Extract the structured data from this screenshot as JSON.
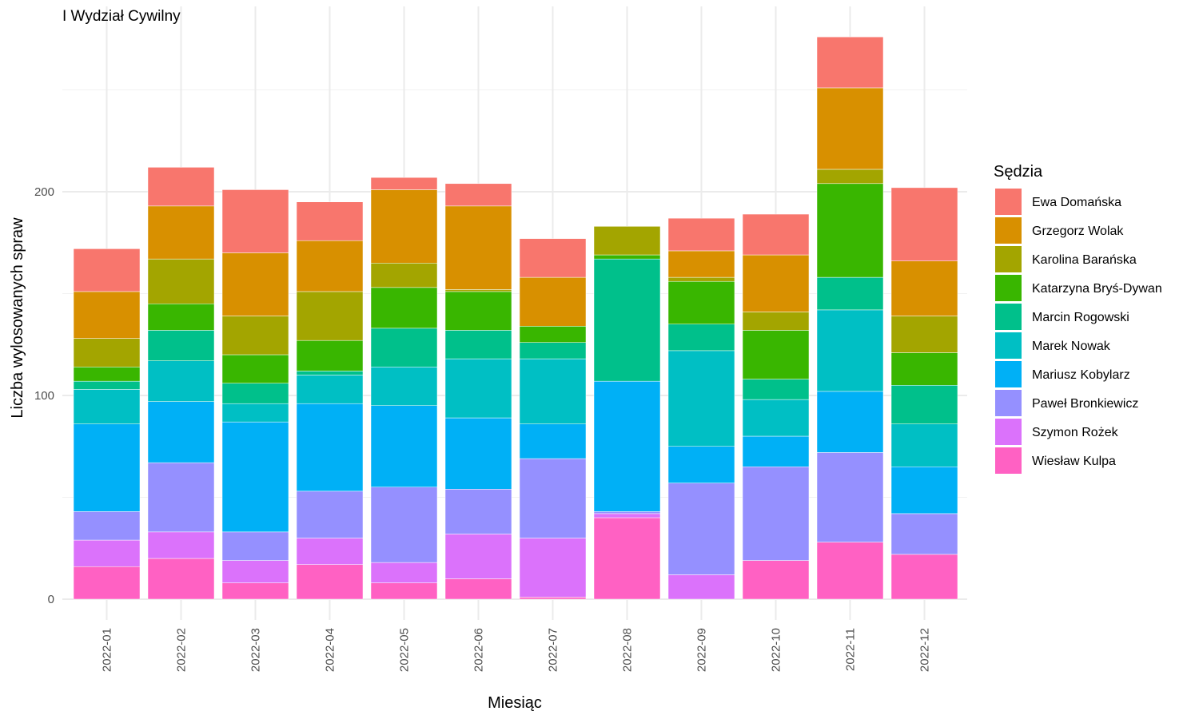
{
  "chart_data": {
    "type": "bar",
    "stacked": true,
    "title": "I Wydział Cywilny",
    "xlabel": "Miesiąc",
    "ylabel": "Liczba wylosowanych spraw",
    "ylim": [
      0,
      285
    ],
    "yticks": [
      0,
      100,
      200
    ],
    "grid": true,
    "legend": {
      "title": "Sędzia",
      "placement": "right"
    },
    "categories": [
      "2022-01",
      "2022-02",
      "2022-03",
      "2022-04",
      "2022-05",
      "2022-06",
      "2022-07",
      "2022-08",
      "2022-09",
      "2022-10",
      "2022-11",
      "2022-12"
    ],
    "series": [
      {
        "name": "Wiesław Kulpa",
        "color": "#FF61C3",
        "values": [
          16,
          20,
          8,
          17,
          8,
          10,
          1,
          40,
          0,
          19,
          28,
          22
        ]
      },
      {
        "name": "Szymon Rożek",
        "color": "#DB72FB",
        "values": [
          13,
          13,
          11,
          13,
          10,
          22,
          29,
          2,
          12,
          0,
          0,
          0
        ]
      },
      {
        "name": "Paweł Bronkiewicz",
        "color": "#9590FF",
        "values": [
          14,
          34,
          14,
          23,
          37,
          22,
          39,
          1,
          45,
          46,
          44,
          20
        ]
      },
      {
        "name": "Mariusz Kobylarz",
        "color": "#00B0F6",
        "values": [
          43,
          30,
          54,
          43,
          40,
          35,
          17,
          64,
          18,
          15,
          30,
          23
        ]
      },
      {
        "name": "Marek Nowak",
        "color": "#00BFC4",
        "values": [
          17,
          20,
          9,
          14,
          19,
          29,
          32,
          0,
          47,
          18,
          40,
          21
        ]
      },
      {
        "name": "Marcin Rogowski",
        "color": "#00C08B",
        "values": [
          4,
          15,
          10,
          2,
          19,
          14,
          8,
          60,
          13,
          10,
          16,
          19
        ]
      },
      {
        "name": "Katarzyna Bryś-Dywan",
        "color": "#39B600",
        "values": [
          7,
          13,
          14,
          15,
          20,
          19,
          8,
          2,
          21,
          24,
          46,
          16
        ]
      },
      {
        "name": "Karolina Barańska",
        "color": "#A3A500",
        "values": [
          14,
          22,
          19,
          24,
          12,
          1,
          0,
          14,
          2,
          9,
          7,
          18
        ]
      },
      {
        "name": "Grzegorz Wolak",
        "color": "#D89000",
        "values": [
          23,
          26,
          31,
          25,
          36,
          41,
          24,
          0,
          13,
          28,
          40,
          27
        ]
      },
      {
        "name": "Ewa Domańska",
        "color": "#F8766D",
        "values": [
          21,
          19,
          31,
          19,
          6,
          11,
          19,
          0,
          16,
          20,
          25,
          36
        ]
      }
    ]
  }
}
